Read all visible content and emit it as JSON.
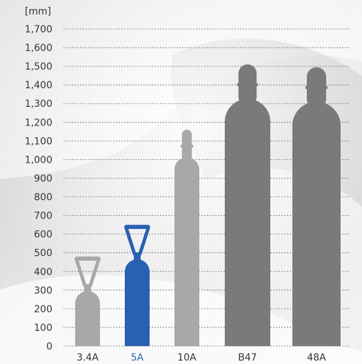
{
  "chart_data": {
    "type": "bar",
    "unit_label": "[mm]",
    "categories": [
      "3.4A",
      "5A",
      "10A",
      "B47",
      "48A"
    ],
    "values": [
      480,
      650,
      1160,
      1510,
      1495
    ],
    "highlighted": "5A",
    "ylim": [
      0,
      1700
    ],
    "y_ticks": [
      "0",
      "100",
      "200",
      "300",
      "400",
      "500",
      "600",
      "700",
      "800",
      "900",
      "1,000",
      "1,100",
      "1,200",
      "1,300",
      "1,400",
      "1,500",
      "1,600",
      "1,700"
    ],
    "grid": true,
    "colors": {
      "highlight": "#2a60b0",
      "light": "#a8a8a8",
      "dark": "#7a7a7a",
      "gridline": "#666666",
      "text": "#333333",
      "highlight_label": "#2a60b0"
    }
  }
}
